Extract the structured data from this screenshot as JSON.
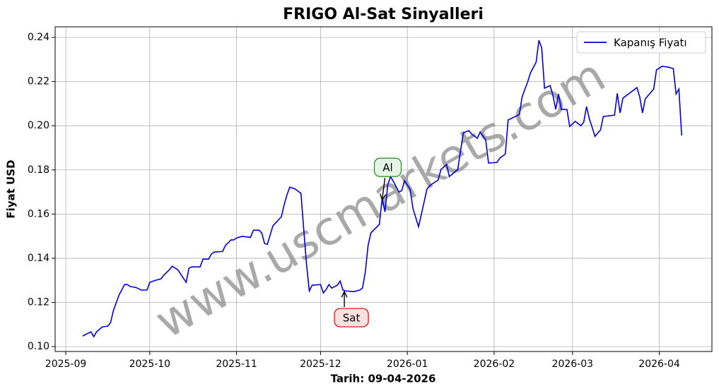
{
  "chart_data": {
    "type": "line",
    "title": "FRIGO Al-Sat Sinyalleri",
    "xlabel": "Tarih: 09-04-2026",
    "ylabel": "Fiyat USD",
    "watermark": "www.uscmarkets.com",
    "grid": true,
    "legend": "upper right",
    "xlim": [
      -3.8,
      230.8
    ],
    "ylim": [
      0.0978,
      0.2448
    ],
    "xticks": [
      {
        "value": 0,
        "label": "2025-09"
      },
      {
        "value": 30,
        "label": "2025-10"
      },
      {
        "value": 61,
        "label": "2025-11"
      },
      {
        "value": 91,
        "label": "2025-12"
      },
      {
        "value": 122,
        "label": "2026-01"
      },
      {
        "value": 153,
        "label": "2026-02"
      },
      {
        "value": 181,
        "label": "2026-03"
      },
      {
        "value": 212,
        "label": "2026-04"
      }
    ],
    "yticks": [
      {
        "value": 0.1,
        "label": "0.10"
      },
      0.12,
      0.14,
      0.16,
      0.18,
      {
        "value": 0.2,
        "label": "0.20"
      },
      0.22,
      0.24
    ],
    "series": [
      {
        "name": "Kapanış Fiyatı",
        "color": "#0000dd",
        "x": [
          6,
          9,
          10,
          11,
          13,
          15,
          16,
          17,
          19,
          21,
          22,
          23,
          25,
          27,
          29,
          30,
          32,
          34,
          35,
          37,
          38,
          40,
          41,
          43,
          44,
          45,
          48,
          49,
          51,
          52,
          53,
          56,
          57,
          59,
          60,
          61,
          63,
          66,
          67,
          69,
          70,
          71,
          72,
          74,
          77,
          78,
          79,
          80,
          82,
          84,
          85,
          86,
          87,
          88,
          91,
          92,
          93,
          94,
          95,
          97,
          98,
          99,
          100,
          103,
          105,
          106,
          107,
          108,
          109,
          112,
          113,
          114,
          115,
          116,
          117,
          119,
          120,
          121,
          123,
          124,
          126,
          128,
          129,
          130,
          133,
          134,
          136,
          137,
          140,
          142,
          144,
          145,
          147,
          148,
          150,
          151,
          154,
          155,
          157,
          158,
          162,
          163,
          165,
          166,
          168,
          169,
          170,
          171,
          173,
          174,
          175,
          176,
          177,
          179,
          180,
          182,
          184,
          185,
          186,
          187,
          188,
          189,
          191,
          192,
          196,
          197,
          198,
          199,
          203,
          204,
          205,
          206,
          207,
          210,
          211,
          213,
          215,
          217,
          218,
          219,
          220
        ],
        "values": [
          0.1048,
          0.1067,
          0.1045,
          0.1067,
          0.1089,
          0.1093,
          0.1109,
          0.1163,
          0.1233,
          0.1281,
          0.1281,
          0.1272,
          0.1268,
          0.1256,
          0.1256,
          0.1291,
          0.13,
          0.1307,
          0.1323,
          0.1348,
          0.1364,
          0.1348,
          0.1329,
          0.1291,
          0.1355,
          0.1361,
          0.1361,
          0.1396,
          0.1396,
          0.1419,
          0.1428,
          0.1431,
          0.1457,
          0.1483,
          0.1483,
          0.1492,
          0.1499,
          0.1495,
          0.1527,
          0.1527,
          0.1515,
          0.1467,
          0.1463,
          0.1547,
          0.1588,
          0.1642,
          0.1687,
          0.1722,
          0.1713,
          0.1694,
          0.1531,
          0.1371,
          0.1252,
          0.1278,
          0.1281,
          0.1243,
          0.1259,
          0.1281,
          0.1265,
          0.1278,
          0.1297,
          0.1256,
          0.1252,
          0.1249,
          0.1256,
          0.1265,
          0.1339,
          0.146,
          0.1515,
          0.1553,
          0.1671,
          0.161,
          0.1732,
          0.177,
          0.1748,
          0.17,
          0.1706,
          0.1751,
          0.1713,
          0.1626,
          0.1543,
          0.1655,
          0.1713,
          0.1729,
          0.1754,
          0.1802,
          0.1825,
          0.177,
          0.1802,
          0.1968,
          0.1978,
          0.1962,
          0.1943,
          0.1972,
          0.1936,
          0.1831,
          0.1834,
          0.1853,
          0.1872,
          0.2026,
          0.2051,
          0.2131,
          0.2199,
          0.224,
          0.2288,
          0.2387,
          0.2352,
          0.217,
          0.2182,
          0.2138,
          0.2074,
          0.2144,
          0.2074,
          0.2074,
          0.1997,
          0.202,
          0.2,
          0.2016,
          0.2087,
          0.2032,
          0.1994,
          0.1952,
          0.1981,
          0.2042,
          0.2048,
          0.2147,
          0.2058,
          0.2125,
          0.2163,
          0.2173,
          0.2131,
          0.2058,
          0.2122,
          0.2166,
          0.2253,
          0.2269,
          0.2266,
          0.2259,
          0.2144,
          0.2166,
          0.1956
        ]
      }
    ],
    "annotations": [
      {
        "text": "Al",
        "x": 113,
        "y": 0.1671,
        "edge": "#1a8a1a",
        "face": "#e6f4e6"
      },
      {
        "text": "Sat",
        "x": 99.5,
        "y": 0.1243,
        "edge": "#e00000",
        "face": "#fde0e0"
      }
    ]
  }
}
